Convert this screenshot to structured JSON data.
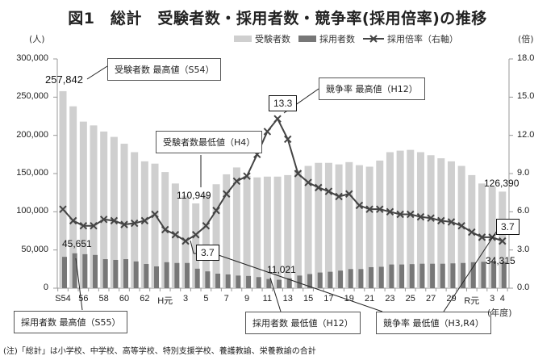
{
  "title": "図1　総計　受験者数・採用者数・競争率(採用倍率)の推移",
  "left_unit": "(人)",
  "right_unit": "(倍)",
  "x_unit": "(年度)",
  "legend": {
    "applicants": "受験者数",
    "hired": "採用者数",
    "ratio": "採用倍率（右軸）"
  },
  "note": "(注)「総計」は小学校、中学校、高等学校、特別支援学校、養護教諭、栄養教諭の合計",
  "callouts": {
    "applicants_max": "受験者数 最高値（S54）",
    "applicants_min": "受験者数最低値（H4）",
    "ratio_max": "競争率 最高値（H12）",
    "hired_max": "採用者数 最高値（S55）",
    "hired_min": "採用者数 最低値（H12）",
    "ratio_min": "競争率 最低値（H3,R4）"
  },
  "value_labels": {
    "applicants_max": "257,842",
    "applicants_min": "110,949",
    "applicants_last": "126,390",
    "hired_max": "45,651",
    "hired_min": "11,021",
    "hired_last": "34,315",
    "ratio_max": "13.3",
    "ratio_min_h3": "3.7",
    "ratio_min_r4": "3.7"
  },
  "colors": {
    "applicants": "#cfcfcf",
    "hired": "#777777",
    "ratio": "#444444"
  },
  "chart_data": {
    "type": "bar",
    "title": "図1　総計　受験者数・採用者数・競争率(採用倍率)の推移",
    "xlabel": "(年度)",
    "ylabel": "(人)",
    "y2label": "(倍)",
    "ylim": [
      0,
      300000
    ],
    "y2lim": [
      0,
      18.0
    ],
    "yticks": [
      "0",
      "50,000",
      "100,000",
      "150,000",
      "200,000",
      "250,000",
      "300,000"
    ],
    "y2ticks": [
      "0.0",
      "3.0",
      "6.0",
      "9.0",
      "12.0",
      "15.0",
      "18.0"
    ],
    "xtick_labels": [
      "S54",
      "56",
      "58",
      "60",
      "62",
      "H元",
      "3",
      "5",
      "7",
      "9",
      "11",
      "13",
      "15",
      "17",
      "19",
      "21",
      "23",
      "25",
      "27",
      "29",
      "R元",
      "3",
      "4"
    ],
    "legend_position": "top-right",
    "grid": false,
    "categories": [
      "S54",
      "S55",
      "S56",
      "S57",
      "S58",
      "S59",
      "S60",
      "S61",
      "S62",
      "S63",
      "H1",
      "H2",
      "H3",
      "H4",
      "H5",
      "H6",
      "H7",
      "H8",
      "H9",
      "H10",
      "H11",
      "H12",
      "H13",
      "H14",
      "H15",
      "H16",
      "H17",
      "H18",
      "H19",
      "H20",
      "H21",
      "H22",
      "H23",
      "H24",
      "H25",
      "H26",
      "H27",
      "H28",
      "H29",
      "H30",
      "R1",
      "R2",
      "R3",
      "R4"
    ],
    "series": [
      {
        "name": "受験者数",
        "type": "bar",
        "axis": "left",
        "values": [
          257842,
          238000,
          218000,
          213000,
          205000,
          198000,
          189000,
          178000,
          166000,
          163000,
          152000,
          137000,
          121000,
          110949,
          122000,
          136000,
          149000,
          158000,
          147000,
          145000,
          146000,
          146000,
          148000,
          154000,
          160000,
          164000,
          164000,
          162000,
          165000,
          161000,
          159000,
          167000,
          178000,
          180000,
          181000,
          178000,
          174000,
          170000,
          166000,
          160000,
          148000,
          137000,
          133000,
          126390
        ]
      },
      {
        "name": "採用者数",
        "type": "bar",
        "axis": "left",
        "values": [
          41000,
          45651,
          44500,
          43500,
          38000,
          37000,
          38000,
          35000,
          31700,
          28500,
          34000,
          33000,
          33000,
          25500,
          22000,
          19000,
          18000,
          16500,
          16000,
          14500,
          12000,
          11021,
          13000,
          16500,
          18500,
          20500,
          21500,
          23000,
          25000,
          25000,
          27500,
          28000,
          31000,
          31000,
          31500,
          32000,
          32000,
          32000,
          32500,
          33000,
          34000,
          34500,
          35000,
          34315
        ]
      },
      {
        "name": "採用倍率（右軸）",
        "type": "line",
        "axis": "right",
        "values": [
          6.2,
          5.3,
          4.9,
          4.9,
          5.4,
          5.3,
          5.0,
          5.1,
          5.3,
          5.8,
          4.6,
          4.2,
          3.7,
          4.2,
          4.9,
          6.1,
          7.4,
          8.4,
          8.8,
          10.5,
          12.3,
          13.3,
          11.7,
          9.0,
          8.3,
          7.9,
          7.6,
          7.2,
          7.4,
          6.5,
          6.2,
          6.2,
          6.0,
          5.8,
          5.8,
          5.6,
          5.5,
          5.3,
          5.2,
          4.9,
          4.4,
          4.0,
          4.0,
          3.7
        ]
      }
    ]
  }
}
